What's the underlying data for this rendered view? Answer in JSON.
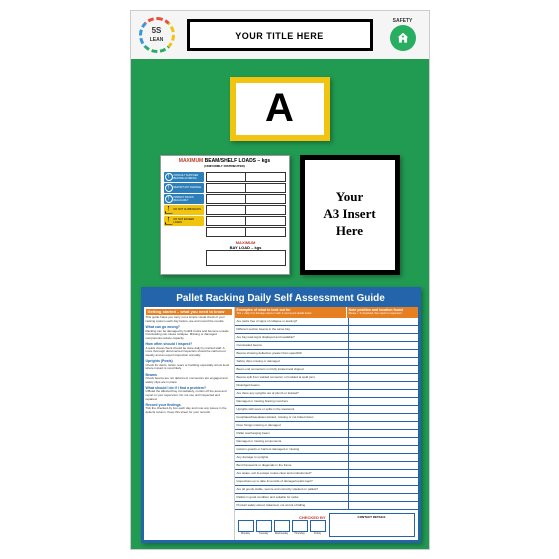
{
  "header": {
    "logo_text_top": "5S",
    "logo_text_bottom": "LEAN",
    "title": "YOUR TITLE HERE",
    "safety_label": "SAFETY"
  },
  "a_card": {
    "letter": "A",
    "border_color": "#f1c40f",
    "bg_color": "#ffffff"
  },
  "max_load": {
    "title_pre": "MAXIMUM",
    "title_mid": "BEAM/SHELF LOADS – kgs",
    "subtitle": "(UNIFORMLY DISTRIBUTED)",
    "warnings": [
      {
        "type": "blue",
        "text": "CONSULT SUPPLIER BEFORE ALTERING"
      },
      {
        "type": "blue",
        "text": "REPORT ANY DAMAGE"
      },
      {
        "type": "blue",
        "text": "INSPECT RACKS REGULARLY"
      },
      {
        "type": "yellow",
        "text": "DO NOT CLIMB RACKS"
      },
      {
        "type": "yellow",
        "text": "DO NOT EXCEED LOADS"
      }
    ],
    "bay_title_pre": "MAXIMUM",
    "bay_title_mid": "BAY LOAD – kgs",
    "row_count": 6
  },
  "a3_insert": {
    "line1": "Your",
    "line2": "A3 Insert",
    "line3": "Here",
    "border_color": "#000000"
  },
  "guide": {
    "title": "Pallet Racking Daily Self Assessment Guide",
    "left_header": "Getting started – what you need to know",
    "left_sections": [
      {
        "hd": "",
        "txt": "This guide helps you carry out a simple visual check of your racking system each day before use and record the results."
      },
      {
        "hd": "What can go wrong?",
        "txt": "Racking can be damaged by forklift trucks and become unsafe. Overloading can cause collapse. Missing or damaged components reduce capacity."
      },
      {
        "hd": "How often should I inspect?",
        "txt": "A quick visual check should be done daily by trained staff. A more thorough documented inspection should be carried out weekly and an expert inspection annually."
      },
      {
        "hd": "Uprights (Posts)",
        "txt": "Check for dents, twists, tears or buckling especially at low level where impact is most likely."
      },
      {
        "hd": "Beams",
        "txt": "Check beams are not deformed, connectors are engaged and safety clips are in place."
      },
      {
        "hd": "What should I do if I find a problem?",
        "txt": "Offload the affected bay immediately, cordon off the area and report to your supervisor. Do not use until inspected and repaired."
      },
      {
        "hd": "Record your findings",
        "txt": "Tick the checked-by box each day and note any issues in the defects column. Keep this sheet for your records."
      }
    ],
    "col1_header": "Examples of what to look out for",
    "col1_sub": "Tick ✓ daily if no damage noted or mark ✗ and record details below",
    "col2_header": "Note position and location found",
    "col2_sub": "Please ✓ if completed, then report to supervisor",
    "checklist_items": [
      "Are racks free of signs of collapse or leaning?",
      "Different section beams in the same bay",
      "Are bay load signs displayed and readable?",
      "Overloaded beams",
      "Beams showing deflection greater than span/200",
      "Safety clips missing or damaged",
      "Beam end connectors not fully located and clipped",
      "Beams split from welded connector or buckled at weld joint",
      "Dislodged beams",
      "Are there any uprights out of plumb or twisted?",
      "Damaged or missing bracing members",
      "Uprights with tears or splits in the steelwork",
      "Footplates/baseplates twisted, missing or not bolted down",
      "Floor fixings missing or damaged",
      "Pallet overhanging beam",
      "Damaged or missing components",
      "Column guards or barriers damaged or missing",
      "Any damage to uprights",
      "Bent framework or diagonals in the frame",
      "Are aisles, exit & escape routes clear and unobstructed?",
      "Inspections up to date & records of damage/repairs kept?",
      "Are all goods stable, secure and correctly stacked on pallets?",
      "Pallets in good condition and suitable for racks",
      "Product safely stored, balanced, not at risk of falling"
    ],
    "checked_by_label": "CHECKED BY",
    "days": [
      "Monday",
      "Tuesday",
      "Wednesday",
      "Thursday",
      "Friday"
    ],
    "contact_header": "CONTACT DETAILS"
  },
  "colors": {
    "board_bg": "#219a52",
    "header_bg": "#f5f5f5",
    "guide_border": "#2364aa",
    "orange_hd": "#e67e22"
  }
}
